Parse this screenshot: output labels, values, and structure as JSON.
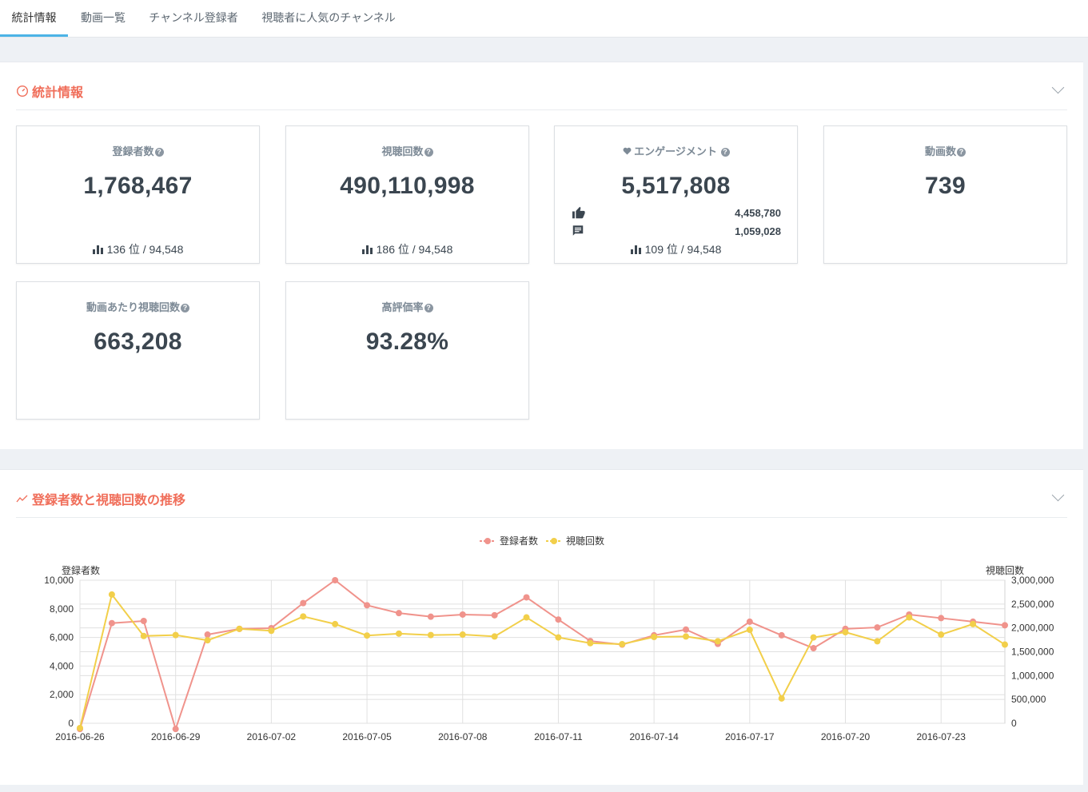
{
  "tabs": [
    {
      "label": "統計情報",
      "active": true
    },
    {
      "label": "動画一覧",
      "active": false
    },
    {
      "label": "チャンネル登録者",
      "active": false
    },
    {
      "label": "視聴者に人気のチャンネル",
      "active": false
    }
  ],
  "stats_panel": {
    "title": "統計情報",
    "icon": "speedometer-icon",
    "cards": {
      "subscribers": {
        "label": "登録者数",
        "value": "1,768,467",
        "rank": "136",
        "rank_suffix": "位 / 94,548"
      },
      "views": {
        "label": "視聴回数",
        "value": "490,110,998",
        "rank": "186",
        "rank_suffix": "位 / 94,548"
      },
      "engagement": {
        "label": "エンゲージメント",
        "value": "5,517,808",
        "likes": "4,458,780",
        "comments": "1,059,028",
        "rank": "109",
        "rank_suffix": "位 / 94,548"
      },
      "videos": {
        "label": "動画数",
        "value": "739"
      },
      "views_per_video": {
        "label": "動画あたり視聴回数",
        "value": "663,208"
      },
      "like_ratio": {
        "label": "高評価率",
        "value": "93.28%"
      }
    }
  },
  "trend_panel": {
    "title": "登録者数と視聴回数の推移",
    "icon": "trend-line-icon"
  },
  "colors": {
    "subscribers": "#f0938c",
    "views": "#f2cf4a",
    "accent": "#f06e5a",
    "tab_active": "#4cb3e6"
  },
  "chart_data": {
    "type": "line",
    "x": [
      "2016-06-26",
      "2016-06-27",
      "2016-06-28",
      "2016-06-29",
      "2016-06-30",
      "2016-07-01",
      "2016-07-02",
      "2016-07-03",
      "2016-07-04",
      "2016-07-05",
      "2016-07-06",
      "2016-07-07",
      "2016-07-08",
      "2016-07-09",
      "2016-07-10",
      "2016-07-11",
      "2016-07-12",
      "2016-07-13",
      "2016-07-14",
      "2016-07-15",
      "2016-07-16",
      "2016-07-17",
      "2016-07-18",
      "2016-07-19",
      "2016-07-20",
      "2016-07-21",
      "2016-07-22",
      "2016-07-23",
      "2016-07-24",
      "2016-07-25"
    ],
    "xticks": [
      "2016-06-26",
      "2016-06-29",
      "2016-07-02",
      "2016-07-05",
      "2016-07-08",
      "2016-07-11",
      "2016-07-14",
      "2016-07-17",
      "2016-07-20",
      "2016-07-23"
    ],
    "series": [
      {
        "name": "登録者数",
        "axis": "left",
        "color": "#f0938c",
        "values": [
          -400,
          7000,
          7150,
          -400,
          6200,
          6600,
          6650,
          8400,
          10000,
          8250,
          7700,
          7450,
          7600,
          7550,
          8800,
          7250,
          5750,
          5500,
          6150,
          6550,
          5550,
          7100,
          6150,
          5250,
          6600,
          6700,
          7600,
          7350,
          7100,
          6850
        ]
      },
      {
        "name": "視聴回数",
        "axis": "right",
        "color": "#f2cf4a",
        "values": [
          -100000,
          2700000,
          1830000,
          1850000,
          1740000,
          1980000,
          1940000,
          2240000,
          2080000,
          1840000,
          1880000,
          1850000,
          1860000,
          1820000,
          2220000,
          1800000,
          1680000,
          1660000,
          1810000,
          1820000,
          1720000,
          1960000,
          520000,
          1800000,
          1910000,
          1720000,
          2220000,
          1860000,
          2080000,
          1650000
        ]
      }
    ],
    "left_axis": {
      "label": "登録者数",
      "ticks": [
        "0",
        "2,000",
        "4,000",
        "6,000",
        "8,000",
        "10,000"
      ],
      "ylim": [
        0,
        10000
      ],
      "tick_values": [
        0,
        2000,
        4000,
        6000,
        8000,
        10000
      ]
    },
    "right_axis": {
      "label": "視聴回数",
      "ticks": [
        "0",
        "500,000",
        "1,000,000",
        "1,500,000",
        "2,000,000",
        "2,500,000",
        "3,000,000"
      ],
      "ylim": [
        0,
        3000000
      ],
      "tick_values": [
        0,
        500000,
        1000000,
        1500000,
        2000000,
        2500000,
        3000000
      ]
    },
    "legend_position": "top-center",
    "grid": true
  }
}
